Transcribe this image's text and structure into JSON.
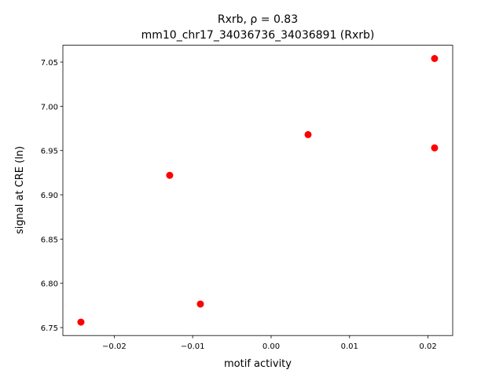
{
  "chart_data": {
    "type": "scatter",
    "title": "Rxrb, ρ = 0.83",
    "subtitle": "mm10_chr17_34036736_34036891 (Rxrb)",
    "x_label": "motif activity",
    "y_label": "signal at CRE (ln)",
    "series": [
      {
        "color": "#ff0000",
        "x": [
          -0.02425,
          -0.01293,
          -0.00902,
          0.00471,
          0.02084,
          0.02084
        ],
        "values": [
          6.7562,
          6.922,
          6.7766,
          6.968,
          7.054,
          6.953
        ]
      }
    ],
    "xlim": [
      -0.02655,
      0.02315
    ],
    "ylim": [
      6.741,
      7.069
    ],
    "xticks": [
      {
        "value": -0.02,
        "label": "−0.02"
      },
      {
        "value": -0.01,
        "label": "−0.01"
      },
      {
        "value": 0,
        "label": "0.00"
      },
      0.01,
      0.02
    ],
    "yticks": [
      6.75,
      {
        "value": 6.8,
        "label": "6.80"
      },
      6.85,
      {
        "value": 6.9,
        "label": "6.90"
      },
      6.95,
      {
        "value": 7,
        "label": "7.00"
      },
      7.05
    ],
    "grid": false
  }
}
